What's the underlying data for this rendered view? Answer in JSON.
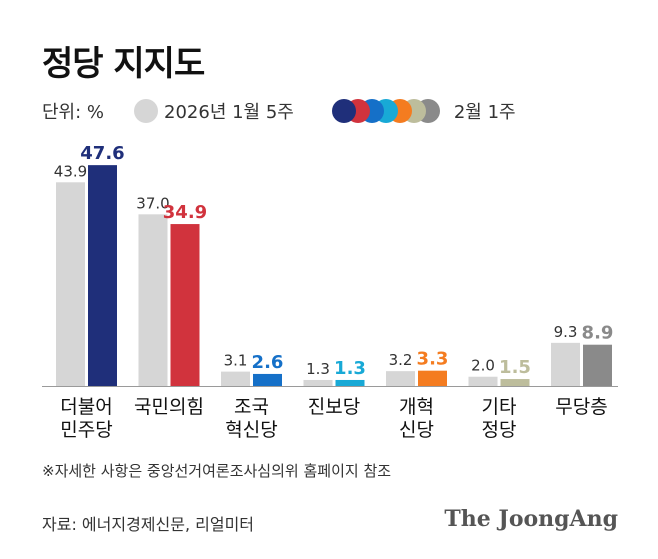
{
  "chart_data": {
    "type": "bar",
    "title": "정당 지지도",
    "unit_label": "단위: %",
    "categories": [
      [
        "더불어",
        "민주당"
      ],
      [
        "국민의힘"
      ],
      [
        "조국",
        "혁신당"
      ],
      [
        "진보당"
      ],
      [
        "개혁",
        "신당"
      ],
      [
        "기타",
        "정당"
      ],
      [
        "무당층"
      ]
    ],
    "series": [
      {
        "name": "2026년 1월 5주",
        "values": [
          43.9,
          37.0,
          3.1,
          1.3,
          3.2,
          2.0,
          9.3
        ],
        "labels": [
          "43.9",
          "37.0",
          "3.1",
          "1.3",
          "3.2",
          "2.0",
          "9.3"
        ],
        "color": "#d6d6d6"
      },
      {
        "name": "2월 1주",
        "values": [
          47.6,
          34.9,
          2.6,
          1.3,
          3.3,
          1.5,
          8.9
        ],
        "labels": [
          "47.6",
          "34.9",
          "2.6",
          "1.3",
          "3.3",
          "1.5",
          "8.9"
        ],
        "colors": [
          "#1f2f7a",
          "#d1333d",
          "#1570c8",
          "#18a9d6",
          "#f47c20",
          "#bdbd9c",
          "#8a8a8a"
        ]
      }
    ],
    "ylim": [
      0,
      50
    ],
    "grid": false,
    "legend_placement": "top"
  },
  "footnote": "※자세한 사항은 중앙선거여론조사심의위 홈페이지 참조",
  "source": "자료: 에너지경제신문, 리얼미터",
  "brand": "The JoongAng",
  "legend_dot_colors": [
    "#1f2f7a",
    "#d1333d",
    "#1570c8",
    "#18a9d6",
    "#f47c20",
    "#bdbd9c",
    "#8a8a8a"
  ]
}
